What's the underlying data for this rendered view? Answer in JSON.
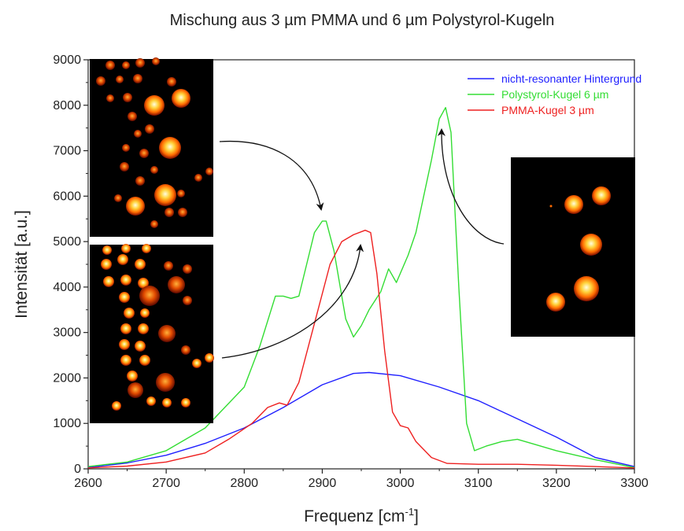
{
  "chart_data": {
    "type": "line",
    "title": "Mischung aus 3 µm PMMA und 6 µm Polystyrol-Kugeln",
    "xlabel": "Frequenz [cm",
    "xlabel_sup": "-1",
    "xlabel_end": "]",
    "ylabel": "Intensität [a.u.]",
    "xlim": [
      2600,
      3300
    ],
    "ylim": [
      0,
      9000
    ],
    "x_ticks": [
      2600,
      2700,
      2800,
      2900,
      3000,
      3100,
      3200,
      3300
    ],
    "y_ticks": [
      0,
      1000,
      2000,
      3000,
      4000,
      5000,
      6000,
      7000,
      8000,
      9000
    ],
    "legend_position": "top-right",
    "series": [
      {
        "name": "nicht-resonanter Hintergrund",
        "color": "#2020ff",
        "x": [
          2600,
          2650,
          2700,
          2750,
          2800,
          2850,
          2900,
          2940,
          2960,
          3000,
          3050,
          3100,
          3150,
          3200,
          3250,
          3300
        ],
        "y": [
          30,
          130,
          300,
          560,
          900,
          1350,
          1850,
          2100,
          2120,
          2050,
          1800,
          1500,
          1100,
          700,
          250,
          50
        ]
      },
      {
        "name": "Polystyrol-Kugel 6 µm",
        "color": "#33dd33",
        "x": [
          2600,
          2650,
          2700,
          2750,
          2800,
          2820,
          2840,
          2850,
          2860,
          2870,
          2880,
          2890,
          2900,
          2905,
          2915,
          2930,
          2940,
          2950,
          2960,
          2975,
          2985,
          2995,
          3010,
          3020,
          3030,
          3040,
          3050,
          3058,
          3065,
          3075,
          3085,
          3095,
          3110,
          3130,
          3150,
          3170,
          3200,
          3250,
          3300
        ],
        "y": [
          50,
          150,
          400,
          900,
          1800,
          2700,
          3800,
          3800,
          3750,
          3800,
          4500,
          5200,
          5450,
          5450,
          4800,
          3300,
          2900,
          3150,
          3500,
          3900,
          4400,
          4100,
          4700,
          5200,
          6000,
          6800,
          7700,
          7950,
          7400,
          4000,
          1000,
          400,
          500,
          600,
          650,
          550,
          400,
          200,
          30
        ]
      },
      {
        "name": "PMMA-Kugel 3 µm",
        "color": "#ee2020",
        "x": [
          2600,
          2650,
          2700,
          2750,
          2780,
          2810,
          2830,
          2845,
          2855,
          2870,
          2890,
          2910,
          2925,
          2940,
          2955,
          2962,
          2970,
          2980,
          2990,
          3000,
          3010,
          3020,
          3040,
          3060,
          3100,
          3150,
          3200,
          3250,
          3300
        ],
        "y": [
          20,
          60,
          150,
          350,
          650,
          1000,
          1350,
          1450,
          1400,
          1900,
          3200,
          4500,
          5000,
          5150,
          5250,
          5200,
          4300,
          2600,
          1250,
          950,
          900,
          600,
          250,
          120,
          100,
          100,
          80,
          50,
          20
        ]
      }
    ]
  },
  "insets": [
    {
      "name": "Polystyrol-Kugel image (top left)",
      "arrow_target_series": "Polystyrol-Kugel 6 µm",
      "arrow_target_x": 2902,
      "arrow_target_y": 5450
    },
    {
      "name": "PMMA-Kugel image (bottom left)",
      "arrow_target_series": "PMMA-Kugel 3 µm",
      "arrow_target_x": 2952,
      "arrow_target_y": 5100
    },
    {
      "name": "Polystyrol-Kugel image (right)",
      "arrow_target_series": "Polystyrol-Kugel 6 µm",
      "arrow_target_x": 3055,
      "arrow_target_y": 7800
    }
  ]
}
